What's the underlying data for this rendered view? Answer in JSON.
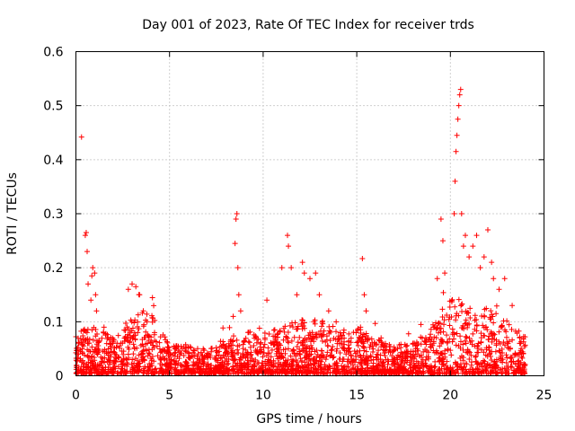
{
  "chart_data": {
    "type": "scatter",
    "title": "Day 001 of 2023, Rate Of TEC Index for receiver trds",
    "xlabel": "GPS time / hours",
    "ylabel": "ROTI / TECUs",
    "xlim": [
      0,
      25
    ],
    "ylim": [
      0,
      0.6
    ],
    "x_ticks": [
      0,
      5,
      10,
      15,
      20,
      25
    ],
    "x_tick_labels": [
      "0",
      "5",
      "10",
      "15",
      "20",
      "25"
    ],
    "y_ticks": [
      0,
      0.1,
      0.2,
      0.3,
      0.4,
      0.5,
      0.6
    ],
    "y_tick_labels": [
      "0",
      "0.1",
      "0.2",
      "0.3",
      "0.4",
      "0.5",
      "0.6"
    ],
    "grid": true,
    "marker": "+",
    "color": "#ff0000",
    "series": [
      {
        "name": "ROTI",
        "x": [
          0.3,
          0.5,
          0.55,
          0.6,
          0.65,
          0.8,
          0.85,
          0.9,
          1.0,
          1.05,
          1.1,
          1.5,
          2.8,
          3.0,
          3.2,
          3.4,
          3.6,
          3.8,
          4.2,
          6.8,
          8.4,
          8.5,
          8.55,
          8.6,
          8.65,
          8.7,
          8.8,
          10.2,
          11.0,
          11.3,
          11.35,
          11.5,
          11.8,
          12.1,
          12.2,
          12.5,
          12.8,
          13.0,
          13.5,
          13.9,
          14.3,
          15.2,
          15.3,
          15.4,
          15.5,
          16.3,
          18.0,
          19.3,
          19.5,
          19.6,
          19.7,
          20.2,
          20.25,
          20.3,
          20.35,
          20.4,
          20.45,
          20.5,
          20.55,
          20.6,
          20.7,
          20.8,
          21.0,
          21.2,
          21.4,
          21.6,
          21.8,
          22.0,
          22.2,
          22.3,
          22.6,
          22.9,
          23.3,
          23.7
        ],
        "y": [
          0.442,
          0.26,
          0.265,
          0.23,
          0.17,
          0.14,
          0.185,
          0.2,
          0.19,
          0.15,
          0.12,
          0.09,
          0.16,
          0.17,
          0.165,
          0.15,
          0.12,
          0.1,
          0.08,
          0.05,
          0.11,
          0.245,
          0.29,
          0.3,
          0.2,
          0.15,
          0.12,
          0.14,
          0.2,
          0.26,
          0.24,
          0.2,
          0.15,
          0.21,
          0.19,
          0.18,
          0.19,
          0.15,
          0.12,
          0.1,
          0.08,
          0.09,
          0.217,
          0.15,
          0.12,
          0.07,
          0.06,
          0.18,
          0.29,
          0.25,
          0.19,
          0.3,
          0.36,
          0.415,
          0.445,
          0.475,
          0.5,
          0.52,
          0.53,
          0.3,
          0.24,
          0.26,
          0.22,
          0.24,
          0.26,
          0.2,
          0.22,
          0.27,
          0.21,
          0.18,
          0.16,
          0.18,
          0.13,
          0.06
        ],
        "bulk_envelope": {
          "x": [
            0,
            1,
            2,
            3,
            4,
            5,
            6,
            7,
            8,
            9,
            10,
            11,
            12,
            13,
            14,
            15,
            16,
            17,
            18,
            19,
            20,
            21,
            22,
            23,
            24
          ],
          "y": [
            0.07,
            0.08,
            0.06,
            0.1,
            0.11,
            0.05,
            0.045,
            0.04,
            0.06,
            0.07,
            0.07,
            0.08,
            0.09,
            0.09,
            0.08,
            0.08,
            0.06,
            0.05,
            0.05,
            0.08,
            0.13,
            0.12,
            0.11,
            0.09,
            0.07
          ]
        }
      }
    ]
  }
}
